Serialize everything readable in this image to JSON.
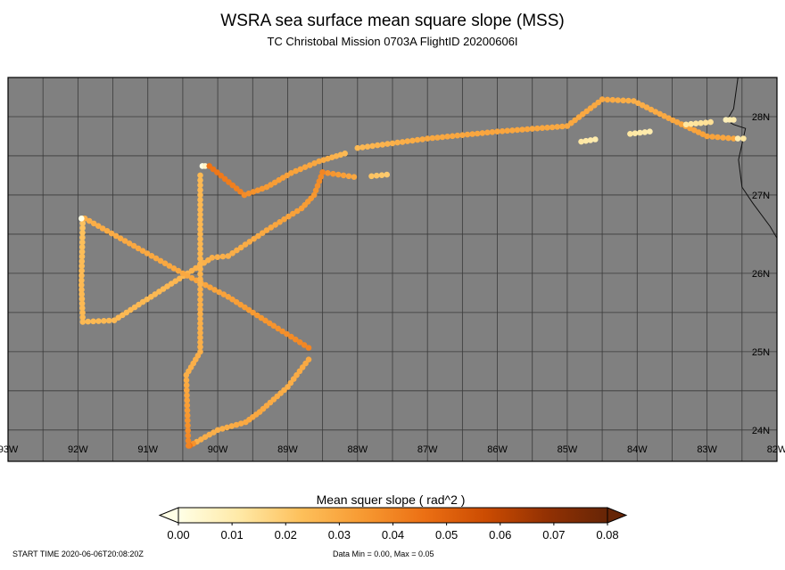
{
  "title": "WSRA sea surface mean square slope (MSS)",
  "subtitle": "TC Christobal Mission 0703A FlightID 20200606I",
  "footer": {
    "start_time": "START TIME 2020-06-06T20:08:20Z",
    "data_range": "Data Min = 0.00, Max = 0.05"
  },
  "colors": {
    "map_background": "#808080",
    "grid": "#3a3a3a",
    "coastline": "#111111",
    "colormap": [
      "#ffffe6",
      "#ffe9a6",
      "#fdc05b",
      "#f79a32",
      "#ec7014",
      "#cc4c02",
      "#933103",
      "#662506"
    ]
  },
  "map": {
    "longitude_range": [
      -93,
      -82
    ],
    "latitude_range": [
      23.6,
      28.5
    ],
    "lon_tick_labels": [
      "93W",
      "92W",
      "91W",
      "90W",
      "89W",
      "88W",
      "87W",
      "86W",
      "85W",
      "84W",
      "83W",
      "82W"
    ],
    "lat_tick_labels": [
      "24N",
      "25N",
      "26N",
      "27N",
      "28N"
    ],
    "lat_ticks": [
      24,
      25,
      26,
      27,
      28
    ]
  },
  "colorbar": {
    "label": "Mean squer slope ( rad^2 )",
    "ticks": [
      "0.00",
      "0.01",
      "0.02",
      "0.03",
      "0.04",
      "0.05",
      "0.06",
      "0.07",
      "0.08"
    ],
    "range": [
      0,
      0.08
    ]
  },
  "chart_data": {
    "type": "scatter",
    "title": "WSRA sea surface mean square slope (MSS)",
    "subtitle": "TC Christobal Mission 0703A FlightID 20200606I",
    "xlabel": "",
    "ylabel": "",
    "xlim": [
      -93,
      -82
    ],
    "ylim": [
      23.6,
      28.5
    ],
    "color_label": "Mean squer slope ( rad^2 )",
    "color_range": [
      0,
      0.08
    ],
    "series": [
      {
        "segments": [
          {
            "points": [
              [
                -90.22,
                27.37
              ],
              [
                -90.18,
                27.37
              ]
            ],
            "mss": [
              0.0,
              0.005
            ]
          },
          {
            "points": [
              [
                -90.12,
                27.37
              ],
              [
                -89.62,
                27.0
              ]
            ],
            "mss": [
              0.045,
              0.04
            ]
          },
          {
            "points": [
              [
                -89.62,
                27.0
              ],
              [
                -89.3,
                27.1
              ],
              [
                -88.95,
                27.28
              ],
              [
                -88.55,
                27.43
              ],
              [
                -88.18,
                27.53
              ]
            ],
            "mss": [
              0.038,
              0.034,
              0.032,
              0.03,
              0.025
            ]
          },
          {
            "points": [
              [
                -88.0,
                27.6
              ],
              [
                -87.0,
                27.72
              ],
              [
                -86.0,
                27.81
              ],
              [
                -85.0,
                27.88
              ],
              [
                -84.5,
                28.22
              ],
              [
                -84.05,
                28.2
              ],
              [
                -83.55,
                27.98
              ],
              [
                -83.0,
                27.75
              ],
              [
                -82.62,
                27.72
              ]
            ],
            "mss": [
              0.025,
              0.03,
              0.031,
              0.03,
              0.03,
              0.028,
              0.03,
              0.032,
              0.03
            ]
          },
          {
            "points": [
              [
                -82.56,
                27.72
              ],
              [
                -82.48,
                27.72
              ]
            ],
            "mss": [
              0.01,
              0.012
            ]
          },
          {
            "points": [
              [
                -83.3,
                27.9
              ],
              [
                -82.95,
                27.93
              ]
            ],
            "mss": [
              0.012,
              0.014
            ]
          },
          {
            "points": [
              [
                -82.73,
                27.96
              ],
              [
                -82.62,
                27.96
              ]
            ],
            "mss": [
              0.008,
              0.01
            ]
          },
          {
            "points": [
              [
                -84.1,
                27.78
              ],
              [
                -83.82,
                27.81
              ]
            ],
            "mss": [
              0.012,
              0.01
            ]
          },
          {
            "points": [
              [
                -84.8,
                27.68
              ],
              [
                -84.6,
                27.71
              ]
            ],
            "mss": [
              0.012,
              0.01
            ]
          },
          {
            "points": [
              [
                -88.5,
                27.29
              ],
              [
                -88.05,
                27.23
              ]
            ],
            "mss": [
              0.038,
              0.03
            ]
          },
          {
            "points": [
              [
                -87.8,
                27.24
              ],
              [
                -87.58,
                27.26
              ]
            ],
            "mss": [
              0.022,
              0.02
            ]
          },
          {
            "points": [
              [
                -88.5,
                27.29
              ],
              [
                -88.62,
                27.0
              ],
              [
                -88.8,
                26.83
              ],
              [
                -89.3,
                26.55
              ],
              [
                -89.85,
                26.22
              ],
              [
                -90.08,
                26.2
              ],
              [
                -90.78,
                25.8
              ],
              [
                -91.48,
                25.4
              ],
              [
                -91.93,
                25.38
              ],
              [
                -91.95,
                25.85
              ],
              [
                -91.93,
                26.7
              ]
            ],
            "mss": [
              0.04,
              0.035,
              0.033,
              0.03,
              0.028,
              0.028,
              0.025,
              0.025,
              0.025,
              0.025,
              0.022
            ]
          },
          {
            "points": [
              [
                -91.9,
                26.7
              ],
              [
                -91.2,
                26.35
              ],
              [
                -90.5,
                26.0
              ],
              [
                -89.85,
                25.7
              ],
              [
                -89.2,
                25.33
              ],
              [
                -88.7,
                25.05
              ]
            ],
            "mss": [
              0.028,
              0.03,
              0.03,
              0.032,
              0.036,
              0.04
            ]
          },
          {
            "points": [
              [
                -88.7,
                24.9
              ],
              [
                -89.0,
                24.55
              ],
              [
                -89.4,
                24.23
              ],
              [
                -89.6,
                24.1
              ],
              [
                -90.0,
                24.0
              ],
              [
                -90.3,
                23.85
              ],
              [
                -90.4,
                23.8
              ]
            ],
            "mss": [
              0.03,
              0.028,
              0.03,
              0.03,
              0.028,
              0.028,
              0.045
            ]
          },
          {
            "points": [
              [
                -90.42,
                23.8
              ],
              [
                -90.45,
                24.7
              ],
              [
                -90.25,
                25.0
              ],
              [
                -90.25,
                25.6
              ],
              [
                -90.25,
                26.25
              ],
              [
                -90.25,
                27.25
              ]
            ],
            "mss": [
              0.04,
              0.028,
              0.028,
              0.028,
              0.026,
              0.025
            ]
          },
          {
            "points": [
              [
                -91.95,
                26.7
              ]
            ],
            "mss": [
              0.0
            ]
          }
        ]
      }
    ]
  }
}
